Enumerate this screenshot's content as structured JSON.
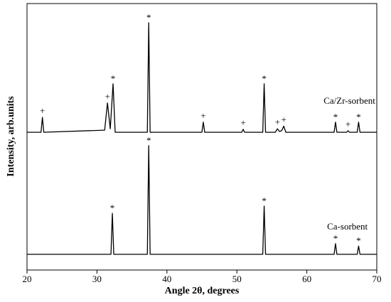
{
  "chart_data": {
    "type": "line",
    "x_label": "Angle 2θ, degrees",
    "y_label": "Intensity, arb.units",
    "xlim": [
      20,
      70
    ],
    "xticks": [
      20,
      30,
      40,
      50,
      60,
      70
    ],
    "ylim": [
      0,
      100
    ],
    "series": [
      {
        "name": "Ca/Zr-sorbent",
        "color": "#000000",
        "label_at": [
          62.4,
          63.2
        ],
        "x": [
          20,
          22.0,
          22.2,
          22.4,
          31.1,
          31.5,
          31.9,
          32.3,
          32.6,
          37.2,
          37.4,
          37.6,
          45.0,
          45.2,
          45.4,
          50.7,
          50.9,
          51.1,
          53.7,
          53.9,
          54.1,
          55.5,
          55.8,
          56.1,
          56.4,
          56.7,
          57.0,
          63.9,
          64.1,
          64.3,
          65.7,
          65.9,
          66.1,
          67.2,
          67.4,
          67.6,
          70
        ],
        "values": [
          51.7,
          51.7,
          57.3,
          51.7,
          52.5,
          62.7,
          53.0,
          69.9,
          51.7,
          51.7,
          92.8,
          51.7,
          51.7,
          55.5,
          51.7,
          51.7,
          52.8,
          51.7,
          51.7,
          69.9,
          51.7,
          51.7,
          53.0,
          52.0,
          52.3,
          54.0,
          51.7,
          51.7,
          55.5,
          51.7,
          51.7,
          52.3,
          51.7,
          51.7,
          55.5,
          51.7,
          51.7
        ]
      },
      {
        "name": "Ca-sorbent",
        "color": "#000000",
        "label_at": [
          62.9,
          16.0
        ],
        "x": [
          20,
          32.0,
          32.2,
          32.4,
          37.2,
          37.4,
          37.6,
          53.7,
          53.9,
          54.1,
          63.9,
          64.1,
          64.3,
          67.2,
          67.4,
          67.6,
          70
        ],
        "values": [
          5.9,
          5.9,
          21.3,
          5.9,
          5.9,
          46.7,
          5.9,
          5.9,
          24.0,
          5.9,
          5.9,
          9.9,
          5.9,
          5.9,
          9.0,
          5.9,
          5.9
        ]
      }
    ],
    "annotations": [
      {
        "text": "+",
        "x": 22.2,
        "y": 57.3
      },
      {
        "text": "+",
        "x": 31.5,
        "y": 62.7
      },
      {
        "text": "*",
        "x": 32.3,
        "y": 69.9
      },
      {
        "text": "*",
        "x": 37.4,
        "y": 92.8
      },
      {
        "text": "+",
        "x": 45.2,
        "y": 55.5
      },
      {
        "text": "+",
        "x": 50.9,
        "y": 52.8
      },
      {
        "text": "*",
        "x": 53.9,
        "y": 69.9
      },
      {
        "text": "+",
        "x": 55.8,
        "y": 53.0
      },
      {
        "text": "+",
        "x": 56.7,
        "y": 54.0
      },
      {
        "text": "*",
        "x": 64.1,
        "y": 55.5
      },
      {
        "text": "+",
        "x": 65.9,
        "y": 52.3
      },
      {
        "text": "*",
        "x": 67.4,
        "y": 55.5
      },
      {
        "text": "*",
        "x": 32.2,
        "y": 21.3
      },
      {
        "text": "*",
        "x": 37.4,
        "y": 46.7
      },
      {
        "text": "*",
        "x": 53.9,
        "y": 24.0
      },
      {
        "text": "*",
        "x": 64.1,
        "y": 9.9
      },
      {
        "text": "*",
        "x": 67.4,
        "y": 9.0
      }
    ]
  }
}
